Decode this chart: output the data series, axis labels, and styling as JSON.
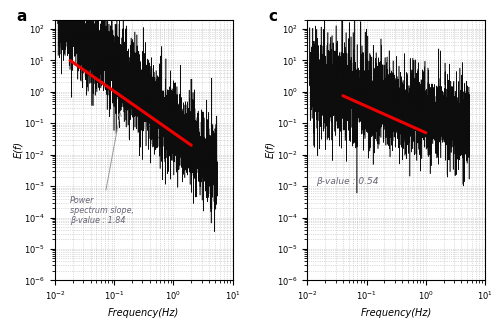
{
  "panel_a": {
    "label": "a",
    "xlabel": "Frequency(Hz)",
    "ylabel": "E(f)",
    "xlim": [
      0.01,
      10
    ],
    "ylim": [
      1e-06,
      200
    ],
    "beta_value": 1.84,
    "annotation_text": "Power\nspectrum slope,\nβ-value : 1.84",
    "red_line_x": [
      0.018,
      2.0
    ],
    "red_line_y": [
      10.0,
      0.02
    ],
    "noise_seed": 42,
    "scale": 0.08
  },
  "panel_c": {
    "label": "c",
    "xlabel": "Frequency(Hz)",
    "ylabel": "E(f)",
    "xlim": [
      0.01,
      10
    ],
    "ylim": [
      1e-06,
      200
    ],
    "beta_value": 0.54,
    "annotation_text": "β-value : 0.54",
    "red_line_x": [
      0.04,
      1.0
    ],
    "red_line_y": [
      0.75,
      0.05
    ],
    "noise_seed": 99,
    "scale": 0.18
  },
  "background_color": "#ffffff",
  "grid_color": "#aaaaaa",
  "line_color": "#000000",
  "red_color": "#ee0000",
  "annotation_color": "#666677"
}
